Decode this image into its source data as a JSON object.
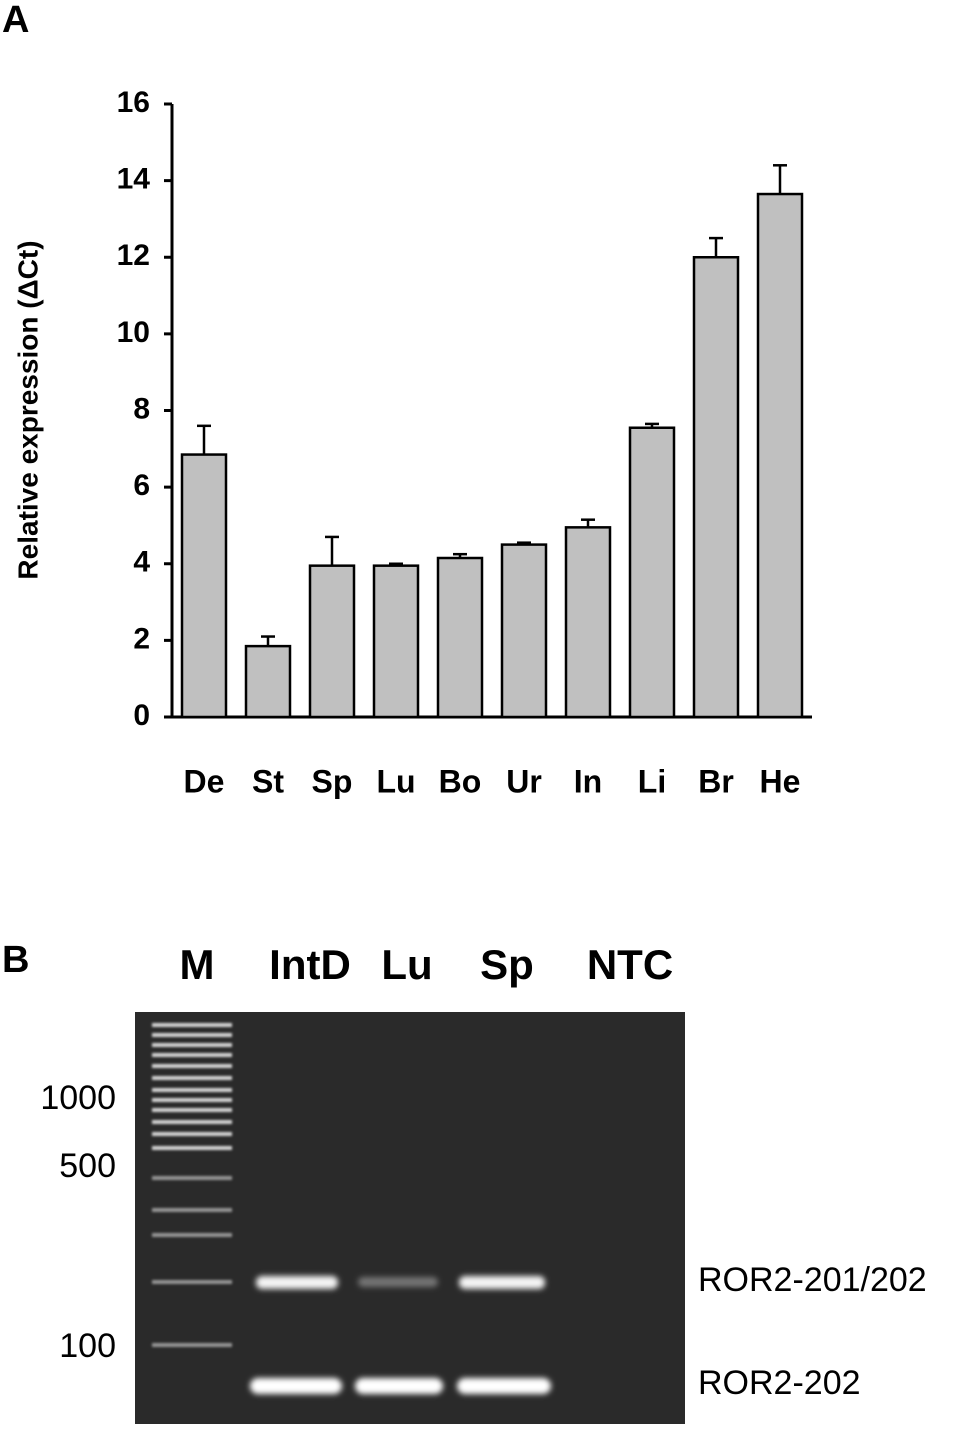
{
  "panel_labels": [
    "A",
    "B"
  ],
  "chart_data": {
    "type": "bar",
    "ylabel": "Relative expression (ΔCt)",
    "categories": [
      "De",
      "St",
      "Sp",
      "Lu",
      "Bo",
      "Ur",
      "In",
      "Li",
      "Br",
      "He"
    ],
    "values": [
      6.85,
      1.85,
      3.95,
      3.95,
      4.15,
      4.5,
      4.95,
      7.55,
      12.0,
      13.65
    ],
    "errors": [
      0.75,
      0.25,
      0.75,
      0.05,
      0.1,
      0.05,
      0.2,
      0.1,
      0.5,
      0.75
    ],
    "color": "#c0c0c0",
    "ylim": [
      0,
      16
    ],
    "yticks": [
      0,
      2,
      4,
      6,
      8,
      10,
      12,
      14,
      16
    ]
  },
  "gel": {
    "lanes": [
      "M",
      "IntD",
      "Lu",
      "Sp",
      "NTC"
    ],
    "ladder_labels": [
      "1000",
      "500",
      "100"
    ],
    "band_labels": [
      "ROR2-201/202",
      "ROR2-202"
    ]
  }
}
